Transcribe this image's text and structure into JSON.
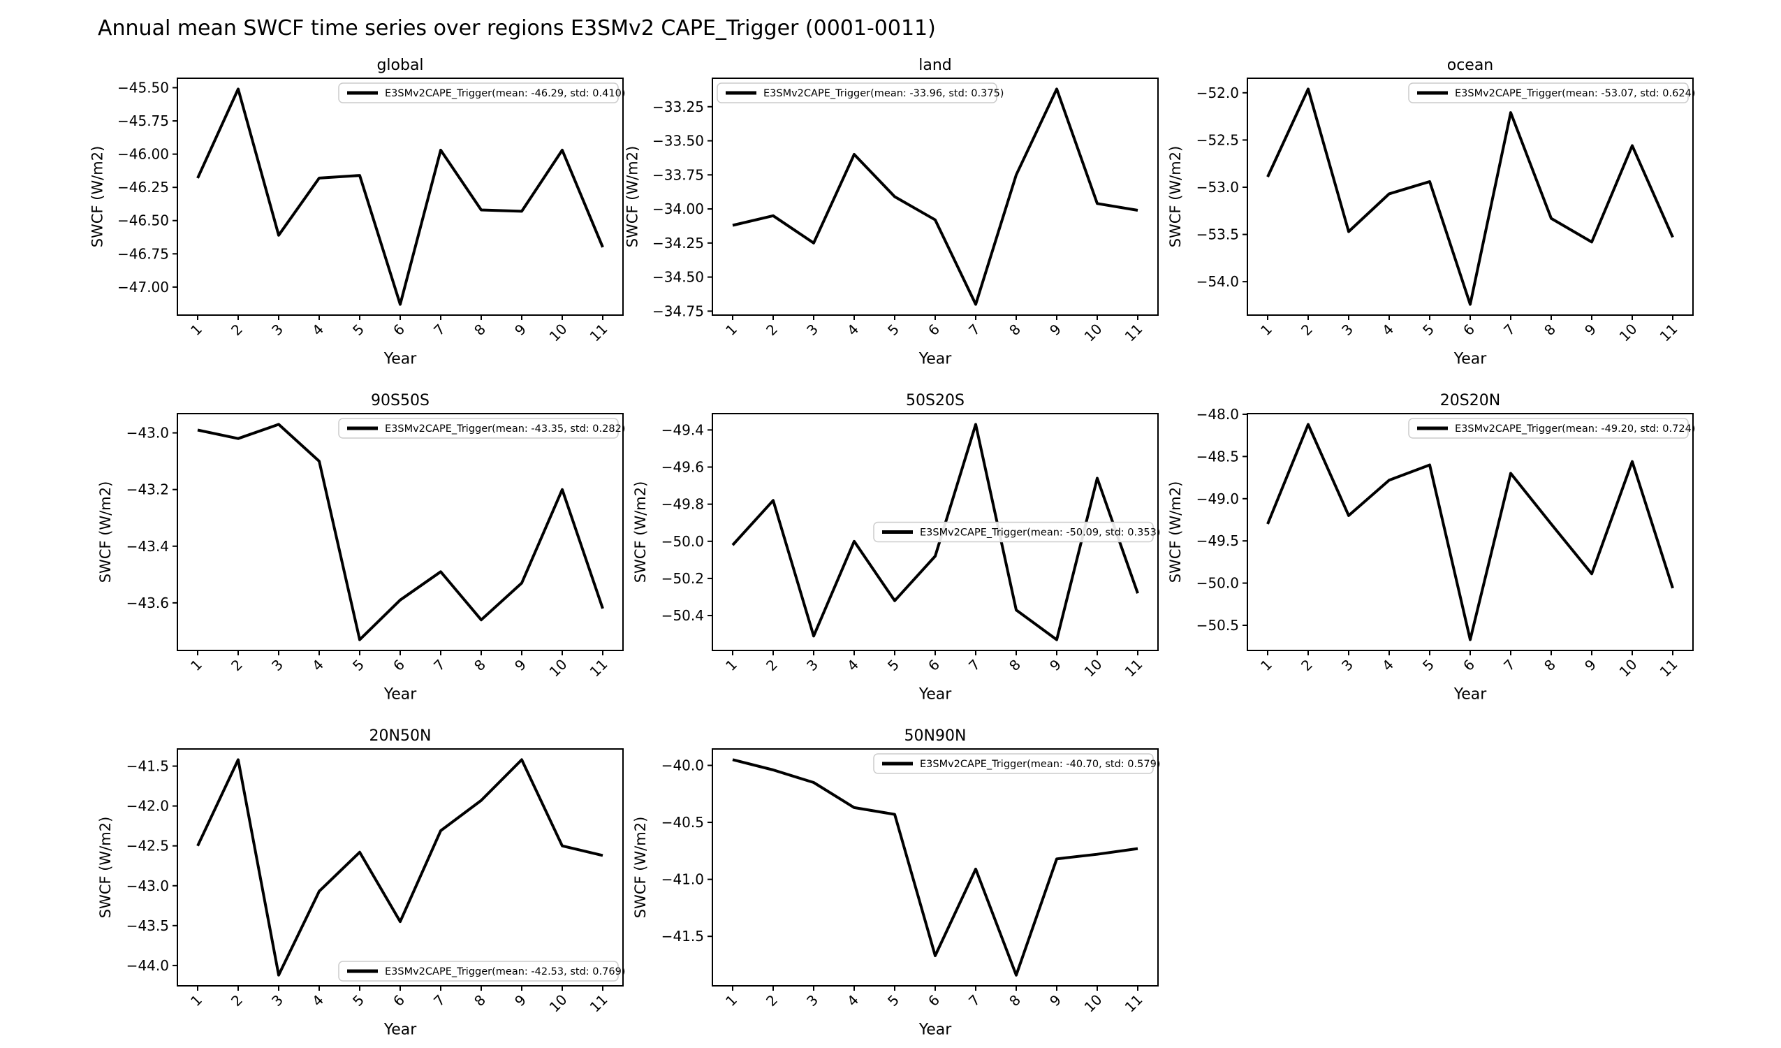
{
  "figure": {
    "title": "Annual mean SWCF time series over regions E3SMv2 CAPE_Trigger (0001-0011)",
    "background_color": "#ffffff",
    "line_color": "#000000",
    "legend_border_color": "#cccccc",
    "legend_fill_color": "#ffffff",
    "text_color": "#000000"
  },
  "chart_data": [
    {
      "type": "line",
      "region": "global",
      "title": "global",
      "xlabel": "Year",
      "ylabel": "SWCF (W/m2)",
      "x": [
        1,
        2,
        3,
        4,
        5,
        6,
        7,
        8,
        9,
        10,
        11
      ],
      "xtick_labels": [
        "1",
        "2",
        "3",
        "4",
        "5",
        "6",
        "7",
        "8",
        "9",
        "10",
        "11"
      ],
      "values": [
        -46.18,
        -45.51,
        -46.61,
        -46.18,
        -46.16,
        -47.13,
        -45.97,
        -46.42,
        -46.43,
        -45.97,
        -46.7
      ],
      "yticks": [
        -45.5,
        -45.75,
        -46.0,
        -46.25,
        -46.5,
        -46.75,
        -47.0
      ],
      "ytick_labels": [
        "−45.50",
        "−45.75",
        "−46.00",
        "−46.25",
        "−46.50",
        "−46.75",
        "−47.00"
      ],
      "xlim": [
        0.5,
        11.5
      ],
      "ylim": [
        -47.211,
        -45.429
      ],
      "grid": false,
      "legend_label": "E3SMv2CAPE_Trigger(mean: -46.29, std: 0.410)",
      "legend_loc": "upper right",
      "mean": -46.29,
      "std": 0.41
    },
    {
      "type": "line",
      "region": "land",
      "title": "land",
      "xlabel": "Year",
      "ylabel": "SWCF (W/m2)",
      "x": [
        1,
        2,
        3,
        4,
        5,
        6,
        7,
        8,
        9,
        10,
        11
      ],
      "xtick_labels": [
        "1",
        "2",
        "3",
        "4",
        "5",
        "6",
        "7",
        "8",
        "9",
        "10",
        "11"
      ],
      "values": [
        -34.12,
        -34.05,
        -34.25,
        -33.6,
        -33.91,
        -34.08,
        -34.7,
        -33.75,
        -33.12,
        -33.96,
        -34.01
      ],
      "yticks": [
        -33.25,
        -33.5,
        -33.75,
        -34.0,
        -34.25,
        -34.5,
        -34.75
      ],
      "ytick_labels": [
        "−33.25",
        "−33.50",
        "−33.75",
        "−34.00",
        "−34.25",
        "−34.50",
        "−34.75"
      ],
      "xlim": [
        0.5,
        11.5
      ],
      "ylim": [
        -34.779,
        -33.041
      ],
      "grid": false,
      "legend_label": "E3SMv2CAPE_Trigger(mean: -33.96, std: 0.375)",
      "legend_loc": "upper left",
      "mean": -33.96,
      "std": 0.375
    },
    {
      "type": "line",
      "region": "ocean",
      "title": "ocean",
      "xlabel": "Year",
      "ylabel": "SWCF (W/m2)",
      "x": [
        1,
        2,
        3,
        4,
        5,
        6,
        7,
        8,
        9,
        10,
        11
      ],
      "xtick_labels": [
        "1",
        "2",
        "3",
        "4",
        "5",
        "6",
        "7",
        "8",
        "9",
        "10",
        "11"
      ],
      "values": [
        -52.89,
        -51.96,
        -53.47,
        -53.07,
        -52.94,
        -54.24,
        -52.21,
        -53.33,
        -53.58,
        -52.56,
        -53.53
      ],
      "yticks": [
        -52.0,
        -52.5,
        -53.0,
        -53.5,
        -54.0
      ],
      "ytick_labels": [
        "−52.0",
        "−52.5",
        "−53.0",
        "−53.5",
        "−54.0"
      ],
      "xlim": [
        0.5,
        11.5
      ],
      "ylim": [
        -54.354,
        -51.846
      ],
      "grid": false,
      "legend_label": "E3SMv2CAPE_Trigger(mean: -53.07, std: 0.624)",
      "legend_loc": "upper right",
      "mean": -53.07,
      "std": 0.624
    },
    {
      "type": "line",
      "region": "90S50S",
      "title": "90S50S",
      "xlabel": "Year",
      "ylabel": "SWCF (W/m2)",
      "x": [
        1,
        2,
        3,
        4,
        5,
        6,
        7,
        8,
        9,
        10,
        11
      ],
      "xtick_labels": [
        "1",
        "2",
        "3",
        "4",
        "5",
        "6",
        "7",
        "8",
        "9",
        "10",
        "11"
      ],
      "values": [
        -42.99,
        -43.02,
        -42.97,
        -43.1,
        -43.73,
        -43.59,
        -43.49,
        -43.66,
        -43.53,
        -43.2,
        -43.62
      ],
      "yticks": [
        -43.0,
        -43.2,
        -43.4,
        -43.6
      ],
      "ytick_labels": [
        "−43.0",
        "−43.2",
        "−43.4",
        "−43.6"
      ],
      "xlim": [
        0.5,
        11.5
      ],
      "ylim": [
        -43.768,
        -42.932
      ],
      "grid": false,
      "legend_label": "E3SMv2CAPE_Trigger(mean: -43.35, std: 0.282)",
      "legend_loc": "upper right",
      "mean": -43.35,
      "std": 0.282
    },
    {
      "type": "line",
      "region": "50S20S",
      "title": "50S20S",
      "xlabel": "Year",
      "ylabel": "SWCF (W/m2)",
      "x": [
        1,
        2,
        3,
        4,
        5,
        6,
        7,
        8,
        9,
        10,
        11
      ],
      "xtick_labels": [
        "1",
        "2",
        "3",
        "4",
        "5",
        "6",
        "7",
        "8",
        "9",
        "10",
        "11"
      ],
      "values": [
        -50.02,
        -49.78,
        -50.51,
        -50.0,
        -50.32,
        -50.08,
        -49.37,
        -50.37,
        -50.53,
        -49.66,
        -50.28
      ],
      "yticks": [
        -49.4,
        -49.6,
        -49.8,
        -50.0,
        -50.2,
        -50.4
      ],
      "ytick_labels": [
        "−49.4",
        "−49.6",
        "−49.8",
        "−50.0",
        "−50.2",
        "−50.4"
      ],
      "xlim": [
        0.5,
        11.5
      ],
      "ylim": [
        -50.588,
        -49.312
      ],
      "grid": false,
      "legend_label": "E3SMv2CAPE_Trigger(mean: -50.09, std: 0.353)",
      "legend_loc": "center right",
      "mean": -50.09,
      "std": 0.353
    },
    {
      "type": "line",
      "region": "20S20N",
      "title": "20S20N",
      "xlabel": "Year",
      "ylabel": "SWCF (W/m2)",
      "x": [
        1,
        2,
        3,
        4,
        5,
        6,
        7,
        8,
        9,
        10,
        11
      ],
      "xtick_labels": [
        "1",
        "2",
        "3",
        "4",
        "5",
        "6",
        "7",
        "8",
        "9",
        "10",
        "11"
      ],
      "values": [
        -49.3,
        -48.12,
        -49.2,
        -48.78,
        -48.6,
        -50.67,
        -48.7,
        -49.3,
        -49.89,
        -48.56,
        -50.06
      ],
      "yticks": [
        -48.0,
        -48.5,
        -49.0,
        -49.5,
        -50.0,
        -50.5
      ],
      "ytick_labels": [
        "−48.0",
        "−48.5",
        "−49.0",
        "−49.5",
        "−50.0",
        "−50.5"
      ],
      "xlim": [
        0.5,
        11.5
      ],
      "ylim": [
        -50.798,
        -47.992
      ],
      "grid": false,
      "legend_label": "E3SMv2CAPE_Trigger(mean: -49.20, std: 0.724)",
      "legend_loc": "upper right",
      "mean": -49.2,
      "std": 0.724
    },
    {
      "type": "line",
      "region": "20N50N",
      "title": "20N50N",
      "xlabel": "Year",
      "ylabel": "SWCF (W/m2)",
      "x": [
        1,
        2,
        3,
        4,
        5,
        6,
        7,
        8,
        9,
        10,
        11
      ],
      "xtick_labels": [
        "1",
        "2",
        "3",
        "4",
        "5",
        "6",
        "7",
        "8",
        "9",
        "10",
        "11"
      ],
      "values": [
        -42.5,
        -41.42,
        -44.12,
        -43.07,
        -42.58,
        -43.45,
        -42.31,
        -41.93,
        -41.42,
        -42.5,
        -42.62
      ],
      "yticks": [
        -41.5,
        -42.0,
        -42.5,
        -43.0,
        -43.5,
        -44.0
      ],
      "ytick_labels": [
        "−41.5",
        "−42.0",
        "−42.5",
        "−43.0",
        "−43.5",
        "−44.0"
      ],
      "xlim": [
        0.5,
        11.5
      ],
      "ylim": [
        -44.255,
        -41.285
      ],
      "grid": false,
      "legend_label": "E3SMv2CAPE_Trigger(mean: -42.53, std: 0.769)",
      "legend_loc": "lower right",
      "mean": -42.53,
      "std": 0.769
    },
    {
      "type": "line",
      "region": "50N90N",
      "title": "50N90N",
      "xlabel": "Year",
      "ylabel": "SWCF (W/m2)",
      "x": [
        1,
        2,
        3,
        4,
        5,
        6,
        7,
        8,
        9,
        10,
        11
      ],
      "xtick_labels": [
        "1",
        "2",
        "3",
        "4",
        "5",
        "6",
        "7",
        "8",
        "9",
        "10",
        "11"
      ],
      "values": [
        -39.95,
        -40.04,
        -40.15,
        -40.37,
        -40.43,
        -41.67,
        -40.91,
        -41.84,
        -40.82,
        -40.78,
        -40.73
      ],
      "yticks": [
        -40.0,
        -40.5,
        -41.0,
        -41.5
      ],
      "ytick_labels": [
        "−40.0",
        "−40.5",
        "−41.0",
        "−41.5"
      ],
      "xlim": [
        0.5,
        11.5
      ],
      "ylim": [
        -41.934,
        -39.856
      ],
      "grid": false,
      "legend_label": "E3SMv2CAPE_Trigger(mean: -40.70, std: 0.579)",
      "legend_loc": "upper right",
      "mean": -40.7,
      "std": 0.579
    }
  ]
}
